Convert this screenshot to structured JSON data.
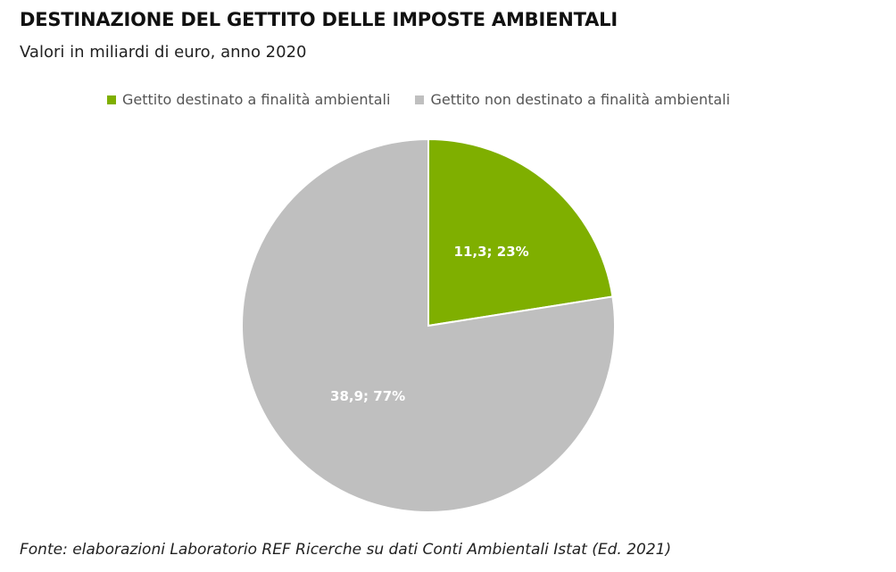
{
  "chart_data": {
    "type": "pie",
    "title": "DESTINAZIONE DEL GETTITO DELLE IMPOSTE AMBIENTALI",
    "subtitle": "Valori in miliardi di euro, anno 2020",
    "legend_position": "top",
    "slices": [
      {
        "name": "Gettito destinato a finalità ambientali",
        "value": 11.3,
        "percent": 23,
        "label": "11,3; 23%",
        "color": "#7FAF00"
      },
      {
        "name": "Gettito non destinato a finalità ambientali",
        "value": 38.9,
        "percent": 77,
        "label": "38,9; 77%",
        "color": "#BFBFBF"
      }
    ]
  },
  "source": "Fonte: elaborazioni Laboratorio REF Ricerche su dati Conti Ambientali Istat (Ed. 2021)"
}
